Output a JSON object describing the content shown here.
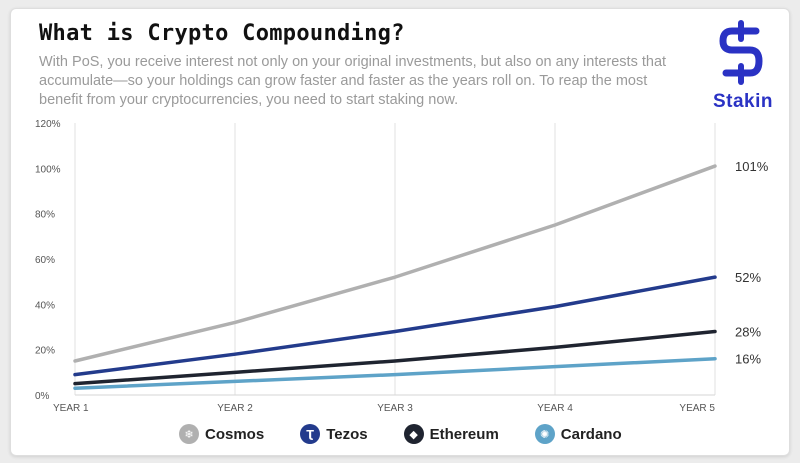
{
  "header": {
    "title": "What is Crypto Compounding?",
    "subtitle": "With PoS, you receive interest not only on your original investments, but also on any interests that accumulate—so your holdings can grow faster and faster as the years roll on. To reap the most benefit from your cryptocurrencies, you need to start staking now."
  },
  "brand": {
    "name": "Stakin",
    "color": "#2a32c4",
    "icon": "stakin-s-logo"
  },
  "chart_data": {
    "type": "line",
    "categories": [
      "YEAR 1",
      "YEAR 2",
      "YEAR 3",
      "YEAR 4",
      "YEAR 5"
    ],
    "ylim": [
      0,
      120
    ],
    "yticks": [
      0,
      20,
      40,
      60,
      80,
      100,
      120
    ],
    "ytick_labels": [
      "0%",
      "20%",
      "40%",
      "60%",
      "80%",
      "100%",
      "120%"
    ],
    "grid": {
      "vertical": true,
      "horizontal": false
    },
    "legend_position": "bottom",
    "series": [
      {
        "name": "Cosmos",
        "color": "#b0b0b0",
        "icon": "cosmos-atom-icon",
        "glyph": "❄",
        "values": [
          15,
          32,
          52,
          75,
          101
        ],
        "end_label": "101%"
      },
      {
        "name": "Tezos",
        "color": "#233b8c",
        "icon": "tezos-icon",
        "glyph": "Ʈ",
        "values": [
          9,
          18,
          28,
          39,
          52
        ],
        "end_label": "52%"
      },
      {
        "name": "Ethereum",
        "color": "#1f2430",
        "icon": "ethereum-icon",
        "glyph": "◆",
        "values": [
          5,
          10,
          15,
          21,
          28
        ],
        "end_label": "28%"
      },
      {
        "name": "Cardano",
        "color": "#5ea3c8",
        "icon": "cardano-icon",
        "glyph": "✺",
        "values": [
          3,
          6,
          9,
          12.5,
          16
        ],
        "end_label": "16%"
      }
    ]
  }
}
